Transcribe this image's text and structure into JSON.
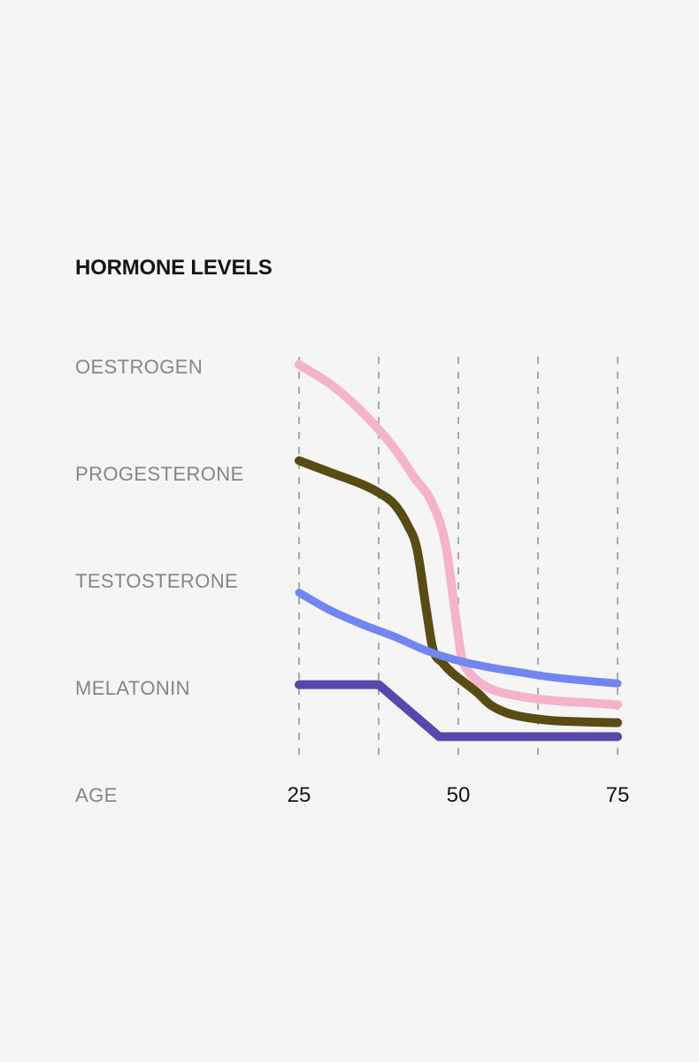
{
  "page": {
    "background": "#f5f5f6",
    "title_color": "#141414",
    "label_color": "#85858a"
  },
  "chart_data": {
    "type": "line",
    "title": "HORMONE LEVELS",
    "xlabel": "AGE",
    "ylabel": "",
    "xlim": [
      25,
      75
    ],
    "ylim": [
      0,
      100
    ],
    "grid": "vertical-dashed",
    "grid_color": "#a9a9ad",
    "gridline_ages": [
      25,
      37.5,
      50,
      62.5,
      75
    ],
    "x_ticks": [
      {
        "label": "25",
        "age": 25
      },
      {
        "label": "50",
        "age": 50
      },
      {
        "label": "75",
        "age": 75
      }
    ],
    "legend_position": "left",
    "series": [
      {
        "name": "OESTROGEN",
        "color": "#f4b3c9",
        "stroke_width": 10,
        "smooth": true,
        "points": [
          [
            25,
            98
          ],
          [
            30,
            93
          ],
          [
            35,
            86
          ],
          [
            40,
            77
          ],
          [
            43,
            70
          ],
          [
            46,
            63
          ],
          [
            48,
            53
          ],
          [
            49.5,
            36
          ],
          [
            50.5,
            25
          ],
          [
            51.5,
            21.5
          ],
          [
            53,
            19
          ],
          [
            55,
            17
          ],
          [
            60,
            15
          ],
          [
            65,
            14
          ],
          [
            70,
            13.5
          ],
          [
            75,
            13
          ]
        ]
      },
      {
        "name": "PROGESTERONE",
        "color": "#584c12",
        "stroke_width": 10,
        "smooth": true,
        "points": [
          [
            25,
            74
          ],
          [
            30,
            71
          ],
          [
            35,
            68
          ],
          [
            37.5,
            66
          ],
          [
            40,
            63
          ],
          [
            42,
            58
          ],
          [
            43.5,
            52
          ],
          [
            45,
            36.5
          ],
          [
            46,
            27
          ],
          [
            47.5,
            23.5
          ],
          [
            49,
            21
          ],
          [
            51,
            18.5
          ],
          [
            53,
            16
          ],
          [
            55,
            13
          ],
          [
            57.5,
            11
          ],
          [
            60,
            10
          ],
          [
            65,
            9
          ],
          [
            70,
            8.7
          ],
          [
            75,
            8.5
          ]
        ]
      },
      {
        "name": "TESTOSTERONE",
        "color": "#7187ef",
        "stroke_width": 9,
        "smooth": true,
        "points": [
          [
            25,
            41
          ],
          [
            30,
            36.5
          ],
          [
            35,
            33
          ],
          [
            40,
            30
          ],
          [
            45,
            26.5
          ],
          [
            50,
            24
          ],
          [
            55,
            22.3
          ],
          [
            60,
            21
          ],
          [
            65,
            19.8
          ],
          [
            70,
            19
          ],
          [
            75,
            18.3
          ]
        ]
      },
      {
        "name": "MELATONIN",
        "color": "#5847ac",
        "stroke_width": 10,
        "smooth": false,
        "points": [
          [
            25,
            18
          ],
          [
            37.5,
            18
          ],
          [
            47,
            5
          ],
          [
            75,
            5
          ]
        ]
      }
    ]
  }
}
